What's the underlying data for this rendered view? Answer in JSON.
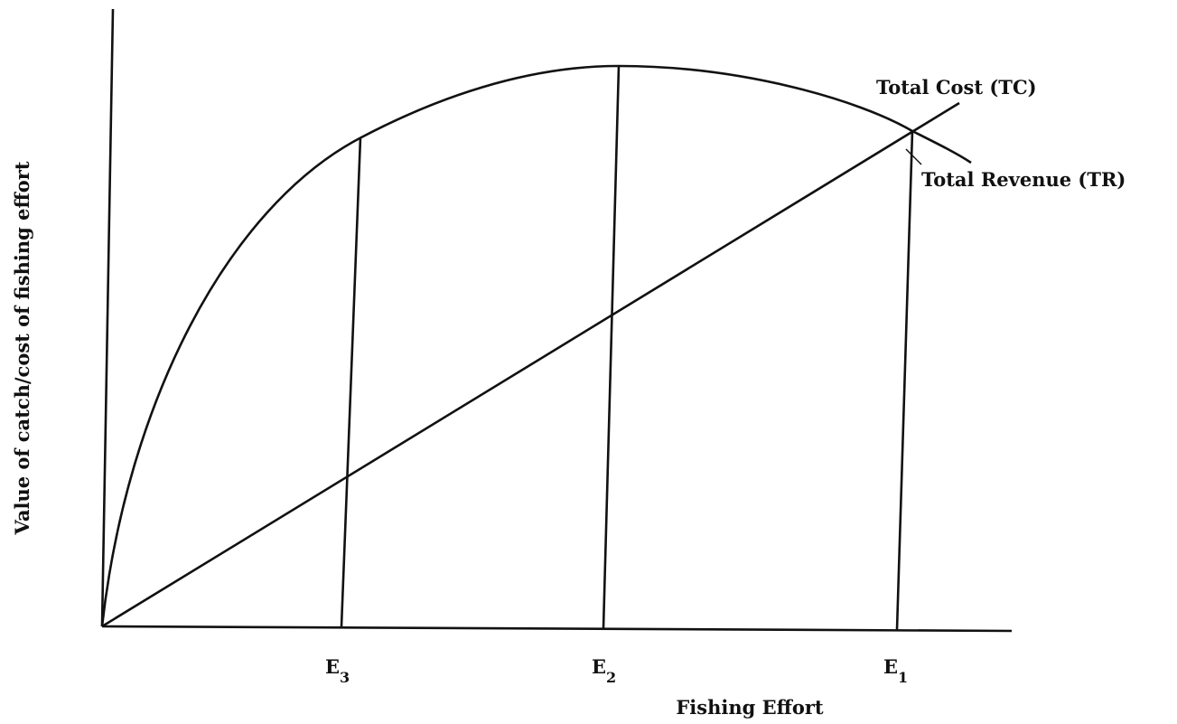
{
  "axes": {
    "y_label": "Value of catch/cost of fishing effort",
    "x_label": "Fishing Effort"
  },
  "curves": {
    "total_cost": "Total Cost (TC)",
    "total_revenue": "Total Revenue (TR)"
  },
  "effort_levels": [
    {
      "letter": "E",
      "subscript": "3"
    },
    {
      "letter": "E",
      "subscript": "2"
    },
    {
      "letter": "E",
      "subscript": "1"
    }
  ]
}
